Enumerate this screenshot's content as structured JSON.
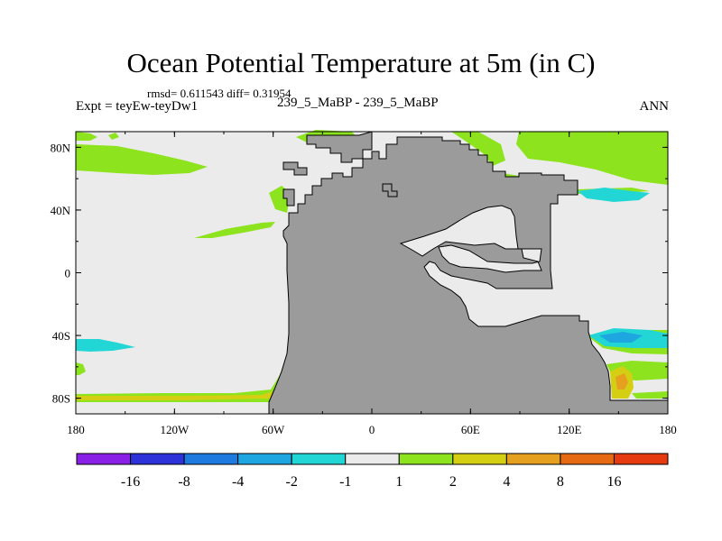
{
  "chart_data": {
    "type": "heatmap",
    "title": "Ocean Potential Temperature at 5m (in C)",
    "stats_text": "rmsd= 0.611543 diff= 0.31954",
    "experiment_label": "Expt = teyEw-teyDw1",
    "center_label": "239_5_MaBP - 239_5_MaBP",
    "season_label": "ANN",
    "x_ticks": [
      "180",
      "120W",
      "60W",
      "0",
      "60E",
      "120E",
      "180"
    ],
    "x_tick_values": [
      -180,
      -120,
      -60,
      0,
      60,
      120,
      180
    ],
    "y_ticks": [
      "80N",
      "40N",
      "0",
      "40S",
      "80S"
    ],
    "y_tick_values": [
      80,
      40,
      0,
      -40,
      -80
    ],
    "xlim": [
      -180,
      180
    ],
    "ylim": [
      -90,
      90
    ],
    "colorbar": {
      "levels": [
        "-16",
        "-8",
        "-4",
        "-2",
        "-1",
        "1",
        "2",
        "4",
        "8",
        "16"
      ],
      "colors": [
        "#8a1fe6",
        "#2d33d9",
        "#1f7ae0",
        "#1ea6e0",
        "#22d6d6",
        "#ebebeb",
        "#8ee31f",
        "#d4cf12",
        "#e6a020",
        "#e66a12",
        "#e63a10"
      ]
    },
    "land_color": "#9b9b9b",
    "ocean_near_zero_color": "#ebebeb"
  }
}
